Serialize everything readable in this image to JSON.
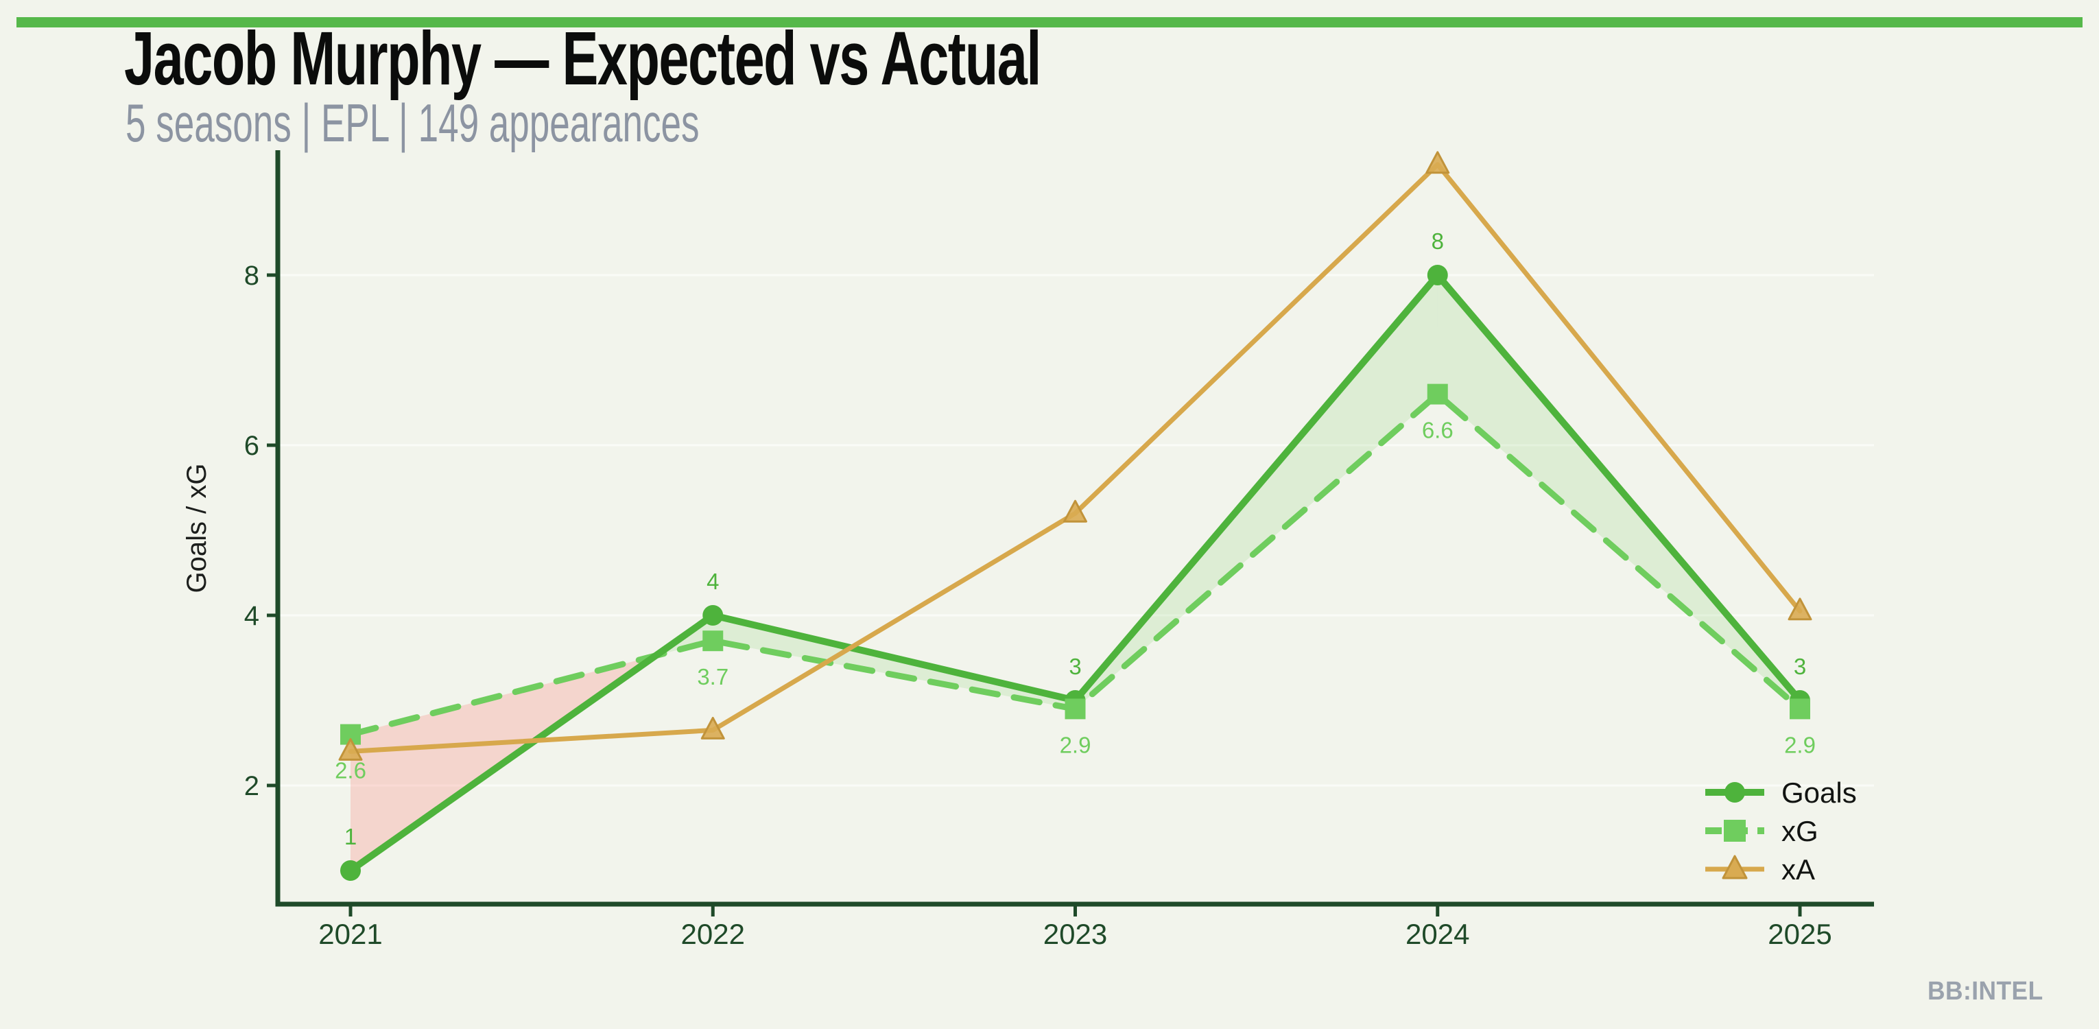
{
  "page": {
    "background_color": "#f2f4ec",
    "accent_bar_color": "#56b84a"
  },
  "header": {
    "title": "Jacob Murphy — Expected vs Actual",
    "subtitle": "5 seasons | EPL | 149 appearances",
    "title_color": "#0b0c0b",
    "subtitle_color": "#8c94a2"
  },
  "watermark": {
    "text": "BB:INTEL",
    "color": "#9aa2ad"
  },
  "chart_data": {
    "type": "line",
    "title": "Jacob Murphy — Expected vs Actual",
    "x": [
      2021,
      2022,
      2023,
      2024,
      2025
    ],
    "xlabel": "",
    "ylabel": "Goals / xG",
    "yticks": [
      2,
      4,
      6,
      8
    ],
    "ylim": [
      0.6,
      9.5
    ],
    "grid": "faint white horizontal lines at yticks",
    "axis_color": "#1f4a29",
    "ylabel_color": "#1c1e1c",
    "legend_position": "lower right",
    "legend_text_color": "#121412",
    "series": [
      {
        "name": "Goals",
        "marker": "circle",
        "line_style": "solid",
        "color": "#4eb33c",
        "values": [
          1,
          4,
          3,
          8,
          3
        ],
        "point_labels": [
          "1",
          "4",
          "3",
          "8",
          "3"
        ],
        "label_position": "above"
      },
      {
        "name": "xG",
        "marker": "square",
        "line_style": "dashed",
        "color": "#6fcd5e",
        "values": [
          2.6,
          3.7,
          2.9,
          6.6,
          2.9
        ],
        "point_labels": [
          "2.6",
          "3.7",
          "2.9",
          "6.6",
          "2.9"
        ],
        "label_position": "below"
      },
      {
        "name": "xA",
        "marker": "triangle",
        "line_style": "solid",
        "color": "#d7a84c",
        "marker_fill": "#d9ab52",
        "marker_edge_color": "#c1933a",
        "values": [
          2.4,
          2.65,
          5.2,
          9.3,
          4.05
        ],
        "point_labels": [],
        "label_position": "none"
      }
    ],
    "fill_between": {
      "upper": "Goals",
      "lower": "xG",
      "positive_color": "rgba(120,200,95,0.17)",
      "negative_color": "rgba(250,120,110,0.25)"
    }
  }
}
